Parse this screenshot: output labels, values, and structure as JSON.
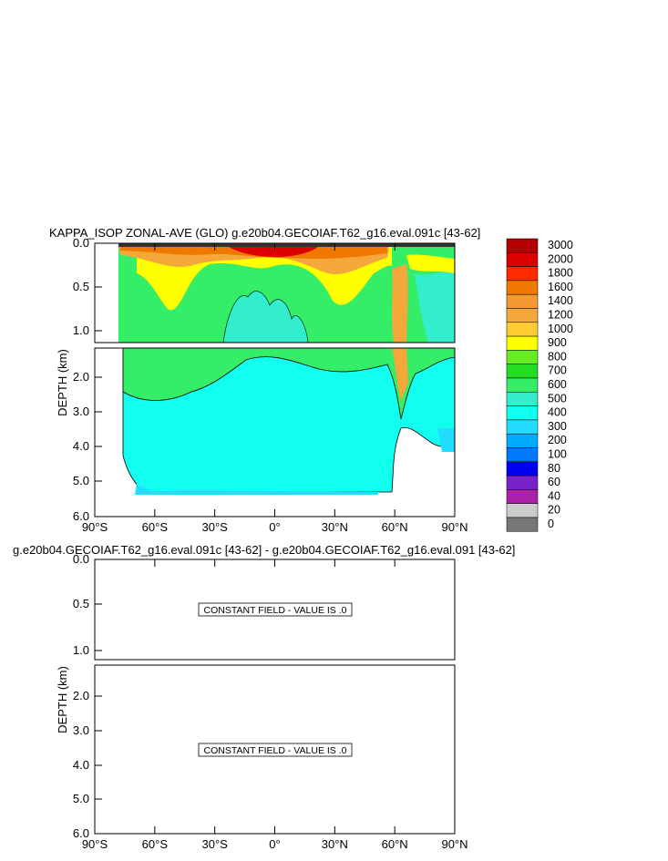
{
  "top_panel": {
    "title": "KAPPA_ISOP ZONAL-AVE (GLO) g.e20b04.GECOIAF.T62_g16.eval.091c [43-62]"
  },
  "bottom_panel": {
    "title": "g.e20b04.GECOIAF.T62_g16.eval.091c [43-62] - g.e20b04.GECOIAF.T62_g16.eval.091 [43-62]",
    "note_upper": "CONSTANT FIELD - VALUE IS .0",
    "note_lower": "CONSTANT FIELD - VALUE IS .0"
  },
  "colorbar": {
    "levels": [
      "3000",
      "2000",
      "1800",
      "1600",
      "1400",
      "1200",
      "1000",
      "900",
      "800",
      "700",
      "600",
      "500",
      "400",
      "300",
      "200",
      "100",
      "80",
      "60",
      "40",
      "20",
      "0"
    ],
    "colors": [
      "#b30000",
      "#dd0000",
      "#ff2a00",
      "#f07800",
      "#f59a33",
      "#f5a83a",
      "#ffcc33",
      "#ffff00",
      "#66ee22",
      "#22dd22",
      "#33ee66",
      "#33eecc",
      "#11ffee",
      "#22ddff",
      "#00aaff",
      "#0077ff",
      "#0000ee",
      "#7722cc",
      "#aa22aa",
      "#cccccc",
      "#777777"
    ]
  },
  "chart_data": [
    {
      "type": "heatmap",
      "title": "KAPPA_ISOP ZONAL-AVE (GLO) g.e20b04.GECOIAF.T62_g16.eval.091c [43-62]",
      "xlabel": "",
      "ylabel": "DEPTH (km)",
      "x_ticks": [
        "90°S",
        "60°S",
        "30°S",
        "0°",
        "30°N",
        "60°N",
        "90°N"
      ],
      "x_values": [
        -90,
        -60,
        -30,
        0,
        30,
        60,
        90
      ],
      "y_ticks_upper": [
        "0.0",
        "0.5",
        "1.0"
      ],
      "y_ticks_lower": [
        "2.0",
        "3.0",
        "4.0",
        "5.0",
        "6.0"
      ],
      "ylim_upper": [
        0,
        1.15
      ],
      "ylim_lower": [
        1.15,
        6.0
      ],
      "y_reversed": true,
      "legend_placement": "right",
      "levels": [
        0,
        20,
        40,
        60,
        80,
        100,
        200,
        300,
        400,
        500,
        600,
        700,
        800,
        900,
        1000,
        1200,
        1400,
        1600,
        1800,
        2000,
        3000
      ]
    },
    {
      "type": "heatmap",
      "title": "g.e20b04.GECOIAF.T62_g16.eval.091c [43-62] - g.e20b04.GECOIAF.T62_g16.eval.091 [43-62]",
      "xlabel": "",
      "ylabel": "DEPTH (km)",
      "x_ticks": [
        "90°S",
        "60°S",
        "30°S",
        "0°",
        "30°N",
        "60°N",
        "90°N"
      ],
      "x_values": [
        -90,
        -60,
        -30,
        0,
        30,
        60,
        90
      ],
      "y_ticks_upper": [
        "0.0",
        "0.5",
        "1.0"
      ],
      "y_ticks_lower": [
        "2.0",
        "3.0",
        "4.0",
        "5.0",
        "6.0"
      ],
      "ylim_upper": [
        0,
        1.15
      ],
      "ylim_lower": [
        1.15,
        6.0
      ],
      "y_reversed": true,
      "constant_value": 0
    }
  ]
}
